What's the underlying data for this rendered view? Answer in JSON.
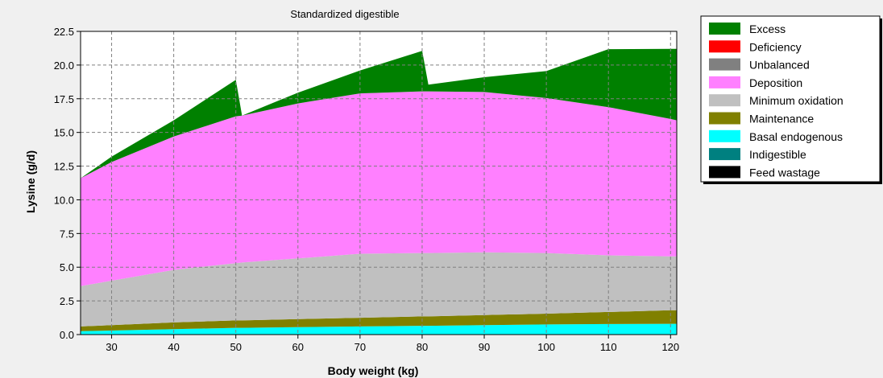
{
  "chart_data": {
    "type": "area",
    "title": "Standardized digestible",
    "xlabel": "Body weight (kg)",
    "ylabel": "Lysine (g/d)",
    "xlim": [
      25,
      121
    ],
    "ylim": [
      0,
      22.5
    ],
    "x_ticks": [
      "30",
      "40",
      "50",
      "60",
      "70",
      "80",
      "90",
      "100",
      "110",
      "120"
    ],
    "y_ticks": [
      "0.0",
      "2.5",
      "5.0",
      "7.5",
      "10.0",
      "12.5",
      "15.0",
      "17.5",
      "20.0",
      "22.5"
    ],
    "grid": true,
    "legend_position": "right",
    "stacked": true,
    "x": [
      25,
      30,
      40,
      50,
      51,
      60,
      70,
      80,
      81,
      90,
      100,
      110,
      120,
      121
    ],
    "series": [
      {
        "name": "Feed wastage",
        "color": "#000000",
        "values": [
          0,
          0,
          0,
          0,
          0,
          0,
          0,
          0,
          0,
          0,
          0,
          0,
          0,
          0
        ]
      },
      {
        "name": "Indigestible",
        "color": "#008080",
        "values": [
          0,
          0,
          0,
          0,
          0,
          0,
          0,
          0,
          0,
          0,
          0,
          0,
          0,
          0
        ]
      },
      {
        "name": "Basal endogenous",
        "color": "#00ffff",
        "values": [
          0.25,
          0.3,
          0.4,
          0.5,
          0.5,
          0.55,
          0.6,
          0.65,
          0.65,
          0.7,
          0.75,
          0.78,
          0.8,
          0.8
        ]
      },
      {
        "name": "Maintenance",
        "color": "#808000",
        "values": [
          0.35,
          0.4,
          0.5,
          0.55,
          0.55,
          0.6,
          0.65,
          0.7,
          0.7,
          0.75,
          0.8,
          0.9,
          1.0,
          1.0
        ]
      },
      {
        "name": "Minimum oxidation",
        "color": "#c0c0c0",
        "values": [
          3.0,
          3.3,
          3.9,
          4.25,
          4.3,
          4.5,
          4.75,
          4.7,
          4.7,
          4.65,
          4.5,
          4.2,
          4.0,
          4.0
        ]
      },
      {
        "name": "Deposition",
        "color": "#ff80ff",
        "values": [
          8.0,
          8.8,
          9.9,
          10.9,
          10.9,
          11.5,
          11.9,
          12.0,
          12.0,
          11.9,
          11.5,
          11.0,
          10.2,
          10.1
        ]
      },
      {
        "name": "Unbalanced",
        "color": "#808080",
        "values": [
          0,
          0,
          0,
          0,
          0,
          0,
          0,
          0,
          0,
          0,
          0,
          0,
          0,
          0
        ]
      },
      {
        "name": "Deficiency",
        "color": "#ff0000",
        "values": [
          0,
          0,
          0,
          0,
          0,
          0,
          0,
          0,
          0,
          0,
          0,
          0,
          0,
          0
        ]
      },
      {
        "name": "Excess",
        "color": "#008000",
        "values": [
          0,
          0.4,
          1.2,
          2.7,
          0,
          0.8,
          1.7,
          3.0,
          0.5,
          1.1,
          2.0,
          4.3,
          5.2,
          5.3
        ]
      }
    ],
    "legend_order": [
      "Excess",
      "Deficiency",
      "Unbalanced",
      "Deposition",
      "Minimum oxidation",
      "Maintenance",
      "Basal endogenous",
      "Indigestible",
      "Feed wastage"
    ]
  }
}
